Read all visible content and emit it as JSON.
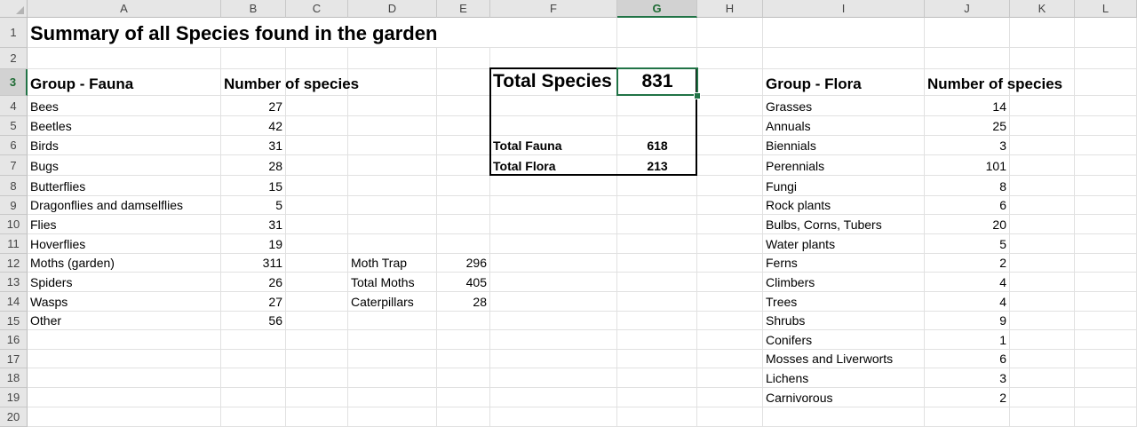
{
  "columns": [
    "A",
    "B",
    "C",
    "D",
    "E",
    "F",
    "G",
    "H",
    "I",
    "J",
    "K",
    "L"
  ],
  "rows": [
    "1",
    "2",
    "3",
    "4",
    "5",
    "6",
    "7",
    "8",
    "9",
    "10",
    "11",
    "12",
    "13",
    "14",
    "15",
    "16",
    "17",
    "18",
    "19",
    "20"
  ],
  "title": "Summary of all Species found in the garden",
  "fauna": {
    "header_group": "Group - Fauna",
    "header_count": "Number of species",
    "items": [
      {
        "name": "Bees",
        "count": "27"
      },
      {
        "name": "Beetles",
        "count": "42"
      },
      {
        "name": "Birds",
        "count": "31"
      },
      {
        "name": "Bugs",
        "count": "28"
      },
      {
        "name": "Butterflies",
        "count": "15"
      },
      {
        "name": "Dragonflies and damselflies",
        "count": "5"
      },
      {
        "name": "Flies",
        "count": "31"
      },
      {
        "name": "Hoverflies",
        "count": "19"
      },
      {
        "name": "Moths (garden)",
        "count": "311"
      },
      {
        "name": "Spiders",
        "count": "26"
      },
      {
        "name": "Wasps",
        "count": "27"
      },
      {
        "name": "Other",
        "count": "56"
      }
    ]
  },
  "moths": [
    {
      "label": "Moth Trap",
      "value": "296"
    },
    {
      "label": "Total Moths",
      "value": "405"
    },
    {
      "label": "Caterpillars",
      "value": "28"
    }
  ],
  "summary": {
    "total_label": "Total Species",
    "total_value": "831",
    "fauna_label": "Total Fauna",
    "fauna_value": "618",
    "flora_label": "Total Flora",
    "flora_value": "213"
  },
  "flora": {
    "header_group": "Group - Flora",
    "header_count": "Number of species",
    "items": [
      {
        "name": "Grasses",
        "count": "14"
      },
      {
        "name": "Annuals",
        "count": "25"
      },
      {
        "name": "Biennials",
        "count": "3"
      },
      {
        "name": "Perennials",
        "count": "101"
      },
      {
        "name": "Fungi",
        "count": "8"
      },
      {
        "name": "Rock plants",
        "count": "6"
      },
      {
        "name": "Bulbs, Corns, Tubers",
        "count": "20"
      },
      {
        "name": "Water plants",
        "count": "5"
      },
      {
        "name": "Ferns",
        "count": "2"
      },
      {
        "name": "Climbers",
        "count": "4"
      },
      {
        "name": "Trees",
        "count": "4"
      },
      {
        "name": "Shrubs",
        "count": "9"
      },
      {
        "name": "Conifers",
        "count": "1"
      },
      {
        "name": "Mosses and Liverworts",
        "count": "6"
      },
      {
        "name": "Lichens",
        "count": "3"
      },
      {
        "name": "Carnivorous",
        "count": "2"
      }
    ]
  },
  "selection": {
    "column": "G",
    "row": "3"
  },
  "colors": {
    "accent": "#217346",
    "header_bg": "#e6e6e6",
    "grid": "#e1e1e1"
  }
}
